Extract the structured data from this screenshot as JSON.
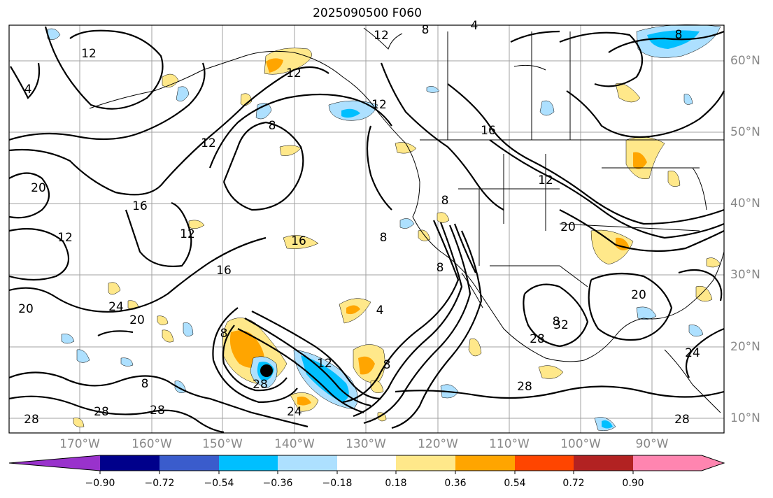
{
  "title": "2025090500 F060",
  "lat_labels": [
    "60°N",
    "50°N",
    "40°N",
    "30°N",
    "20°N",
    "10°N"
  ],
  "lon_labels": [
    "170°W",
    "160°W",
    "150°W",
    "140°W",
    "130°W",
    "120°W",
    "110°W",
    "100°W",
    "90°W"
  ],
  "contour_labels": [
    "12",
    "8",
    "4",
    "12",
    "12",
    "8",
    "4",
    "16",
    "8",
    "12",
    "20",
    "16",
    "12",
    "12",
    "20",
    "16",
    "16",
    "8",
    "24",
    "20",
    "4",
    "8",
    "20",
    "20",
    "8",
    "28",
    "8",
    "12",
    "24",
    "28",
    "28",
    "8",
    "28",
    "32",
    "28",
    "28",
    "24",
    "8",
    "8",
    "12",
    "28",
    "12"
  ],
  "colorbar": {
    "ticks": [
      "−0.90",
      "−0.72",
      "−0.54",
      "−0.36",
      "−0.18",
      "0.18",
      "0.36",
      "0.54",
      "0.72",
      "0.90"
    ],
    "colors": [
      "#9932cc",
      "#00008b",
      "#3a5ccc",
      "#00bfff",
      "#ade0ff",
      "#ffffff",
      "#ffe88a",
      "#ffa500",
      "#ff4500",
      "#b22222",
      "#ff85b0"
    ]
  },
  "colors": {
    "positive_light": "#ffe88a",
    "positive_mid": "#ffa500",
    "negative_light": "#ade0ff",
    "negative_mid": "#00bfff",
    "contour": "#000000",
    "grid": "#a0a0a0",
    "axis_label": "#888888"
  }
}
